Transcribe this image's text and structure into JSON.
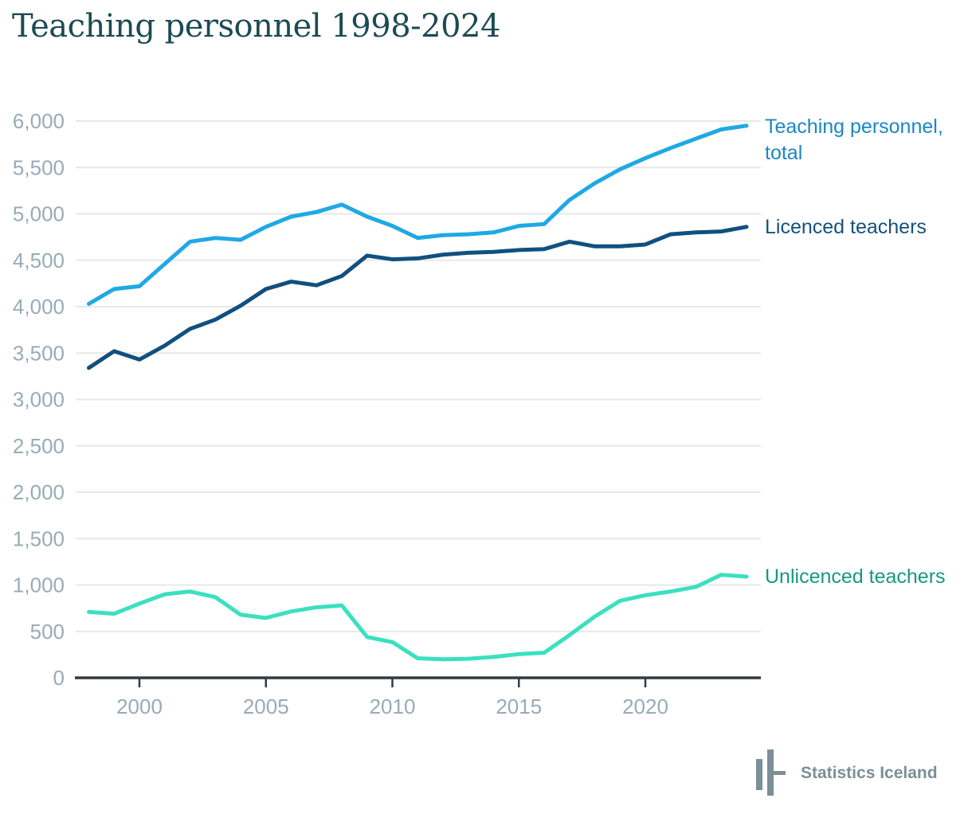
{
  "title": "Teaching personnel 1998-2024",
  "colors": {
    "title": "#1D4A55",
    "axis-label": "#97ACB7",
    "gridline": "#E8E8E8",
    "axis-line": "#343B40",
    "brand": "#7C8F97"
  },
  "chart_data": {
    "type": "line",
    "title": "Teaching personnel 1998-2024",
    "xlabel": "",
    "ylabel": "",
    "ylim": [
      0,
      6000
    ],
    "grid": true,
    "legend_position": "right-end-of-lines",
    "x": [
      1998,
      1999,
      2000,
      2001,
      2002,
      2003,
      2004,
      2005,
      2006,
      2007,
      2008,
      2009,
      2010,
      2011,
      2012,
      2013,
      2014,
      2015,
      2016,
      2017,
      2018,
      2019,
      2020,
      2021,
      2022,
      2023,
      2024
    ],
    "series": [
      {
        "name": "Teaching personnel, total",
        "slug": "teaching-personnel-total",
        "color": "#1FA9E4",
        "label_color": "#1B87C5",
        "values": [
          4030,
          4190,
          4220,
          4460,
          4700,
          4740,
          4720,
          4860,
          4970,
          5020,
          5100,
          4970,
          4870,
          4740,
          4770,
          4780,
          4800,
          4870,
          4890,
          5150,
          5330,
          5480,
          5600,
          5710,
          5810,
          5910,
          5950
        ]
      },
      {
        "name": "Licenced teachers",
        "slug": "licenced-teachers",
        "color": "#11507E",
        "label_color": "#15527C",
        "values": [
          3340,
          3520,
          3430,
          3580,
          3760,
          3860,
          4010,
          4190,
          4270,
          4230,
          4330,
          4550,
          4510,
          4520,
          4560,
          4580,
          4590,
          4610,
          4620,
          4700,
          4650,
          4650,
          4670,
          4780,
          4800,
          4810,
          4860
        ]
      },
      {
        "name": "Unlicenced teachers",
        "slug": "unlicenced-teachers",
        "color": "#3BE0BF",
        "label_color": "#169A7D",
        "values": [
          710,
          690,
          800,
          900,
          930,
          870,
          680,
          645,
          715,
          760,
          780,
          440,
          385,
          210,
          200,
          205,
          225,
          255,
          270,
          460,
          660,
          830,
          890,
          930,
          980,
          1110,
          1090
        ]
      }
    ],
    "yticks": [
      {
        "value": 0,
        "label": "0"
      },
      {
        "value": 500,
        "label": "500"
      },
      {
        "value": 1000,
        "label": "1,000"
      },
      {
        "value": 1500,
        "label": "1,500"
      },
      {
        "value": 2000,
        "label": "2,000"
      },
      {
        "value": 2500,
        "label": "2,500"
      },
      {
        "value": 3000,
        "label": "3,000"
      },
      {
        "value": 3500,
        "label": "3,500"
      },
      {
        "value": 4000,
        "label": "4,000"
      },
      {
        "value": 4500,
        "label": "4,500"
      },
      {
        "value": 5000,
        "label": "5,000"
      },
      {
        "value": 5500,
        "label": "5,500"
      },
      {
        "value": 6000,
        "label": "6,000"
      }
    ],
    "xticks": [
      {
        "value": 2000,
        "label": "2000"
      },
      {
        "value": 2005,
        "label": "2005"
      },
      {
        "value": 2010,
        "label": "2010"
      },
      {
        "value": 2015,
        "label": "2015"
      },
      {
        "value": 2020,
        "label": "2020"
      }
    ]
  },
  "footer": {
    "brand": "Statistics Iceland"
  }
}
